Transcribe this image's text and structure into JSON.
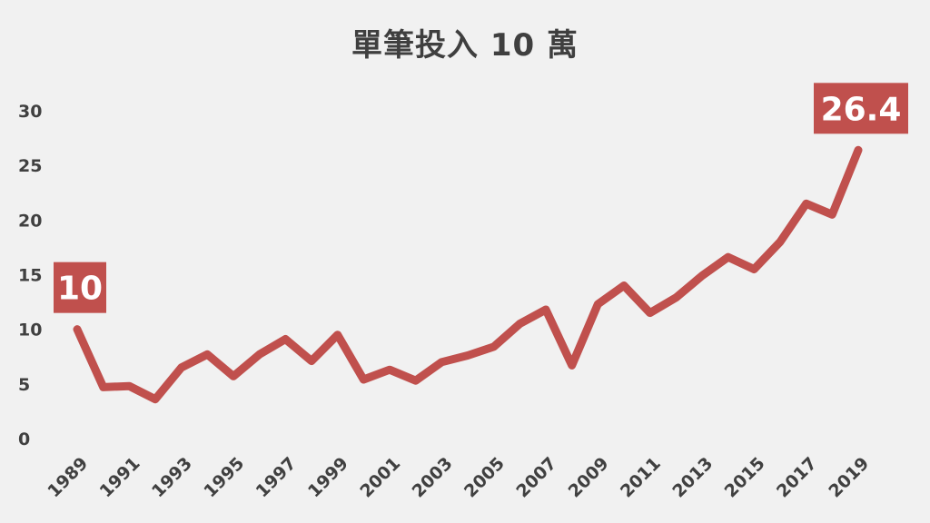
{
  "chart_data": {
    "type": "line",
    "title": "單筆投入 10 萬",
    "xlabel": "",
    "ylabel": "",
    "ylim": [
      0,
      30
    ],
    "y_ticks": [
      0,
      5,
      10,
      15,
      20,
      25,
      30
    ],
    "x": [
      1989,
      1990,
      1991,
      1992,
      1993,
      1994,
      1995,
      1996,
      1997,
      1998,
      1999,
      2000,
      2001,
      2002,
      2003,
      2004,
      2005,
      2006,
      2007,
      2008,
      2009,
      2010,
      2011,
      2012,
      2013,
      2014,
      2015,
      2016,
      2017,
      2018,
      2019
    ],
    "x_tick_labels": [
      "1989",
      "1991",
      "1993",
      "1995",
      "1997",
      "1999",
      "2001",
      "2003",
      "2005",
      "2007",
      "2009",
      "2011",
      "2013",
      "2015",
      "2017",
      "2019"
    ],
    "values": [
      10,
      4.7,
      4.8,
      3.6,
      6.5,
      7.7,
      5.7,
      7.7,
      9.1,
      7.1,
      9.5,
      5.4,
      6.3,
      5.3,
      7,
      7.6,
      8.4,
      10.5,
      11.8,
      6.7,
      12.3,
      14,
      11.5,
      12.9,
      14.9,
      16.6,
      15.5,
      18,
      21.5,
      20.5,
      26.4
    ],
    "data_labels": [
      {
        "index": 0,
        "text": "10"
      },
      {
        "index": 30,
        "text": "26.4"
      }
    ],
    "grid": false,
    "line_color": "#c0504d",
    "label_bg_color": "#c0504d"
  }
}
